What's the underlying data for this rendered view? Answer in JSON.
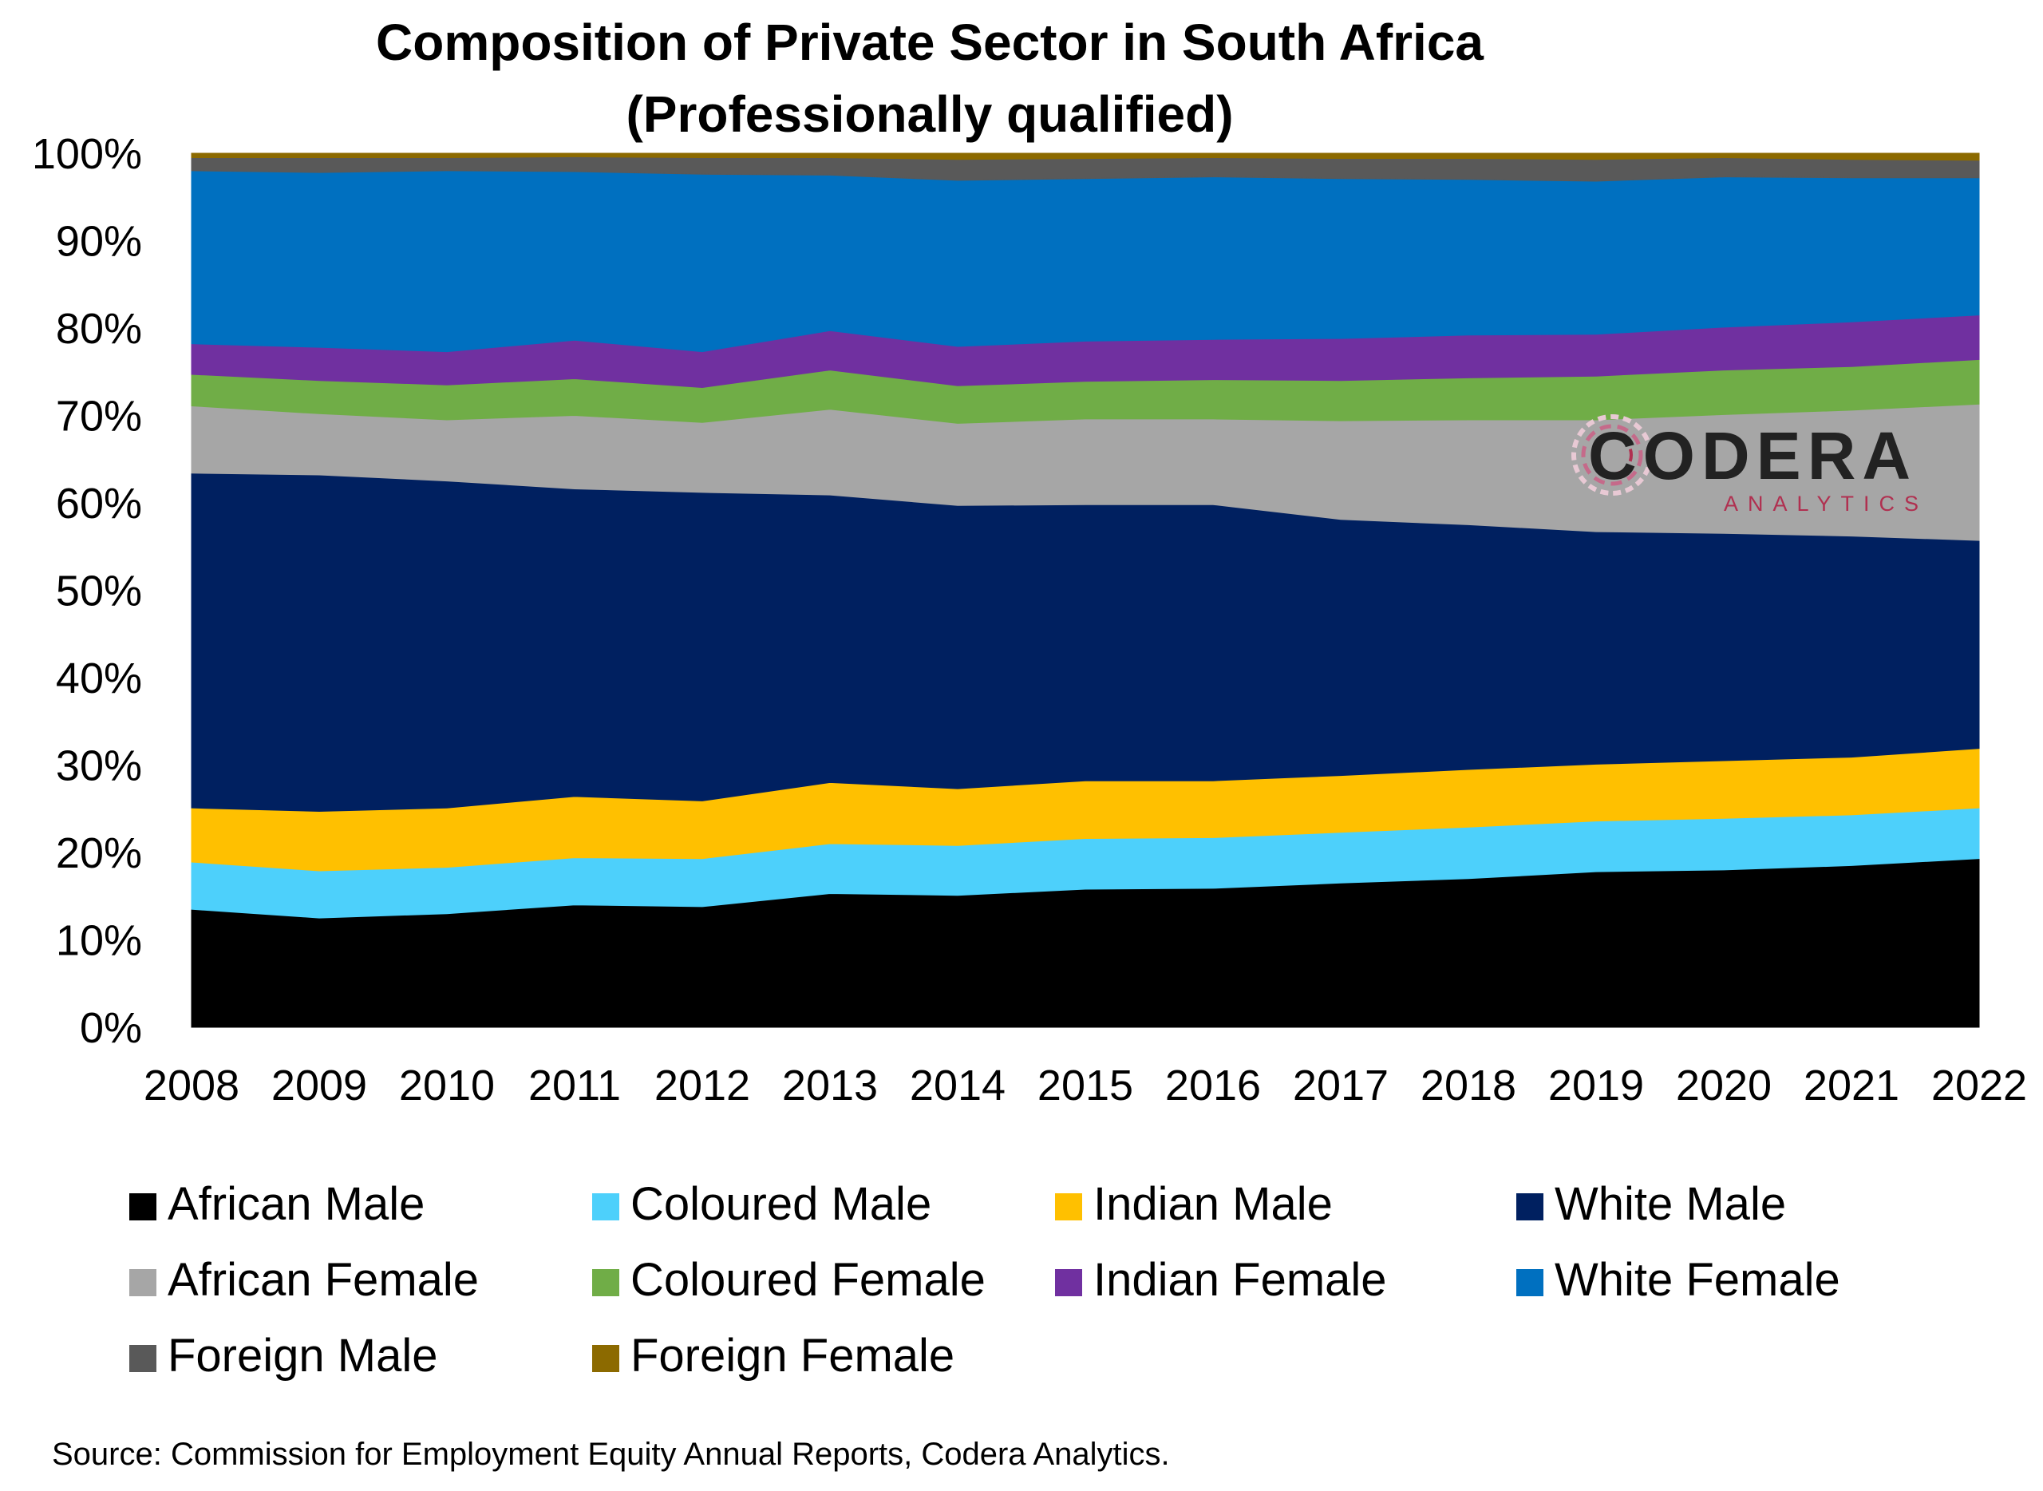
{
  "chart_data": {
    "type": "area",
    "stacked": true,
    "title": "Composition of Private Sector in South Africa",
    "subtitle": "(Professionally qualified)",
    "x": [
      "2008",
      "2009",
      "2010",
      "2011",
      "2012",
      "2013",
      "2014",
      "2015",
      "2016",
      "2017",
      "2018",
      "2019",
      "2020",
      "2021",
      "2022"
    ],
    "ylim": [
      0,
      100
    ],
    "y_ticks": [
      "0%",
      "10%",
      "20%",
      "30%",
      "40%",
      "50%",
      "60%",
      "70%",
      "80%",
      "90%",
      "100%"
    ],
    "grid": false,
    "legend_position": "bottom",
    "series": [
      {
        "name": "African Male",
        "color": "#000000",
        "values": [
          13.5,
          12.5,
          13.0,
          14.0,
          13.8,
          15.3,
          15.1,
          15.8,
          15.9,
          16.5,
          17.0,
          17.8,
          18.0,
          18.5,
          19.3
        ]
      },
      {
        "name": "Coloured Male",
        "color": "#4dd0fb",
        "values": [
          5.4,
          5.4,
          5.3,
          5.4,
          5.5,
          5.7,
          5.7,
          5.8,
          5.8,
          5.8,
          5.9,
          5.8,
          5.9,
          5.8,
          5.8
        ]
      },
      {
        "name": "Indian Male",
        "color": "#ffc000",
        "values": [
          6.2,
          6.8,
          6.8,
          7.0,
          6.6,
          7.0,
          6.5,
          6.6,
          6.5,
          6.5,
          6.6,
          6.5,
          6.6,
          6.6,
          6.8
        ]
      },
      {
        "name": "White Male",
        "color": "#002060",
        "values": [
          38.3,
          38.5,
          37.4,
          35.2,
          35.3,
          32.9,
          32.4,
          31.6,
          31.6,
          29.3,
          28.0,
          26.6,
          26.0,
          25.3,
          23.8
        ]
      },
      {
        "name": "African Female",
        "color": "#a6a6a6",
        "values": [
          7.7,
          7.0,
          7.0,
          8.4,
          8.0,
          9.8,
          9.4,
          9.8,
          9.8,
          11.3,
          12.0,
          12.8,
          13.6,
          14.4,
          15.6
        ]
      },
      {
        "name": "Coloured Female",
        "color": "#70ad47",
        "values": [
          3.6,
          3.8,
          4.0,
          4.2,
          4.0,
          4.5,
          4.3,
          4.3,
          4.5,
          4.6,
          4.8,
          5.0,
          5.1,
          5.0,
          5.1
        ]
      },
      {
        "name": "Indian Female",
        "color": "#7030a0",
        "values": [
          3.5,
          3.8,
          3.8,
          4.4,
          4.1,
          4.5,
          4.5,
          4.6,
          4.6,
          4.8,
          4.9,
          4.8,
          4.9,
          5.1,
          5.1
        ]
      },
      {
        "name": "White Female",
        "color": "#0070c0",
        "values": [
          19.8,
          20.0,
          20.7,
          19.3,
          20.3,
          17.8,
          19.0,
          18.6,
          18.6,
          18.3,
          17.8,
          17.5,
          17.2,
          16.5,
          15.7
        ]
      },
      {
        "name": "Foreign Male",
        "color": "#595959",
        "values": [
          1.5,
          1.7,
          1.5,
          1.7,
          1.9,
          2.0,
          2.4,
          2.3,
          2.2,
          2.3,
          2.4,
          2.5,
          2.2,
          2.1,
          2.0
        ]
      },
      {
        "name": "Foreign Female",
        "color": "#8c6a00",
        "values": [
          0.5,
          0.5,
          0.5,
          0.4,
          0.5,
          0.5,
          0.7,
          0.6,
          0.5,
          0.6,
          0.6,
          0.7,
          0.5,
          0.7,
          0.8
        ]
      }
    ],
    "source": "Source: Commission for Employment Equity Annual Reports, Codera Analytics."
  },
  "logo": {
    "name": "CODERA",
    "tagline": "ANALYTICS"
  }
}
